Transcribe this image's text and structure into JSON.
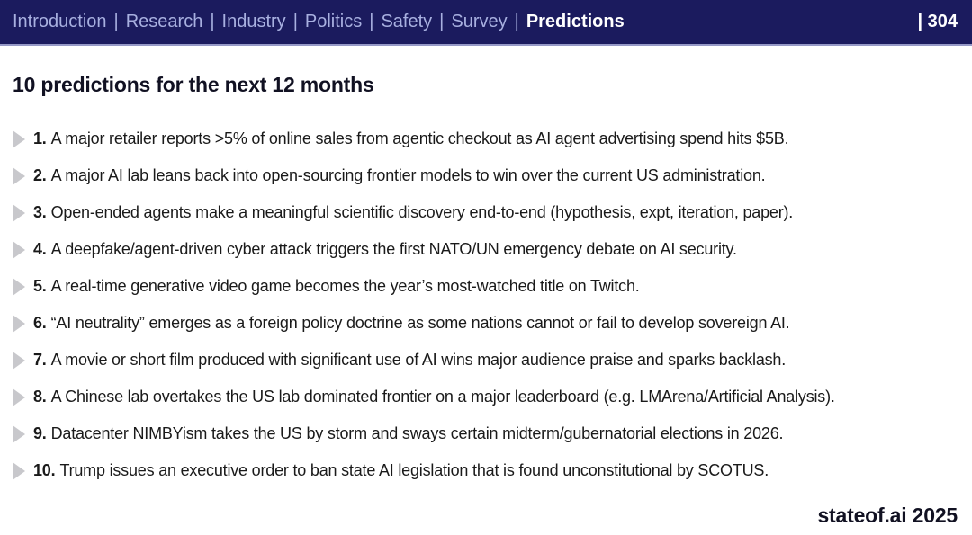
{
  "header": {
    "nav_items": [
      "Introduction",
      "Research",
      "Industry",
      "Politics",
      "Safety",
      "Survey"
    ],
    "active_item": "Predictions",
    "separator": "|",
    "page_number": "| 304",
    "colors": {
      "bar_background": "#1b1b5e",
      "inactive_text": "#a8b0e0",
      "active_text": "#ffffff",
      "bottom_border": "#9699c7"
    }
  },
  "main": {
    "title": "10 predictions for the next 12 months",
    "bullet_color": "#c8c8cc",
    "predictions": [
      {
        "number": "1.",
        "text": "A major retailer reports >5% of online sales from agentic checkout as AI agent advertising spend hits $5B."
      },
      {
        "number": "2.",
        "text": "A major AI lab leans back into open-sourcing frontier models to win over the current US administration."
      },
      {
        "number": "3.",
        "text": "Open-ended agents make a meaningful scientific discovery end-to-end (hypothesis, expt, iteration, paper)."
      },
      {
        "number": "4.",
        "text": "A deepfake/agent-driven cyber attack triggers the first NATO/UN emergency debate on AI security."
      },
      {
        "number": "5.",
        "text": "A real-time generative video game becomes the year’s most-watched title on Twitch."
      },
      {
        "number": "6.",
        "text": "“AI neutrality” emerges as a foreign policy doctrine as some nations cannot or fail to develop sovereign AI."
      },
      {
        "number": "7.",
        "text": "A movie or short film produced with significant use of AI wins major audience praise and sparks backlash."
      },
      {
        "number": "8.",
        "text": "A Chinese lab overtakes the US lab dominated frontier on a major leaderboard (e.g. LMArena/Artificial Analysis)."
      },
      {
        "number": "9.",
        "text": "Datacenter NIMBYism takes the US by storm and sways certain midterm/gubernatorial elections in 2026."
      },
      {
        "number": "10.",
        "text": "Trump issues an executive order to ban state AI legislation that is found unconstitutional by SCOTUS."
      }
    ]
  },
  "footer": {
    "brand": "stateof.ai 2025"
  }
}
